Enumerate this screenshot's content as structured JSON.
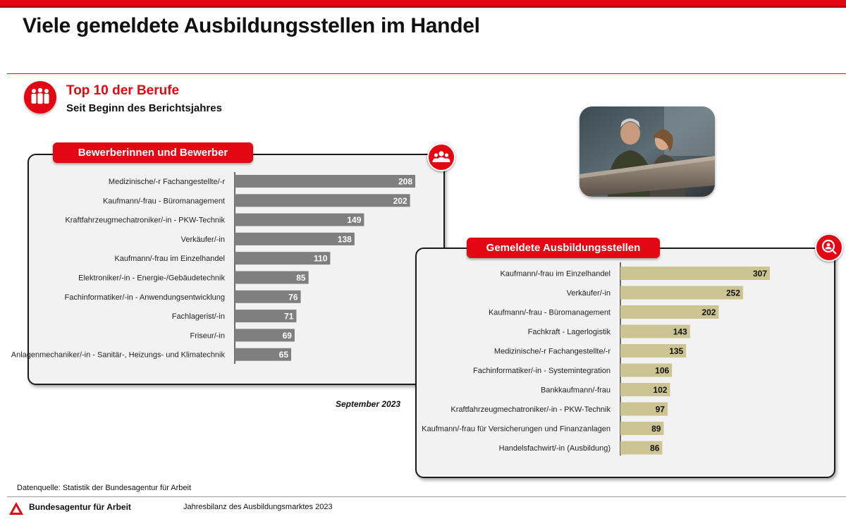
{
  "page": {
    "title": "Viele gemeldete Ausbildungsstellen im Handel",
    "section_title": "Top 10 der Berufe",
    "section_subtitle": "Seit Beginn des Berichtsjahres",
    "date_label": "September 2023",
    "source": "Datenquelle: Statistik der Bundesagentur für Arbeit",
    "org_name": "Bundesagentur für Arbeit",
    "doc_title": "Jahresbilanz des Ausbildungsmarktes 2023"
  },
  "icons": {
    "section": "people-group-icon",
    "left": "people-icon",
    "right": "magnifier-person-icon",
    "logo": "ba-logo-icon"
  },
  "colors": {
    "accent": "#e30613",
    "left_bars": "#7f7f7f",
    "right_bars": "#cdc494"
  },
  "photo": {
    "description": "workers-photo"
  },
  "chart_data": [
    {
      "type": "bar",
      "orientation": "horizontal",
      "title": "Bewerberinnen und Bewerber",
      "categories": [
        "Medizinische/-r Fachangestellte/-r",
        "Kaufmann/-frau - Büromanagement",
        "Kraftfahrzeugmechatroniker/-in - PKW-Technik",
        "Verkäufer/-in",
        "Kaufmann/-frau im Einzelhandel",
        "Elektroniker/-in - Energie-/Gebäudetechnik",
        "Fachinformatiker/-in - Anwendungsentwicklung",
        "Fachlagerist/-in",
        "Friseur/-in",
        "Anlagenmechaniker/-in - Sanitär-, Heizungs- und Klimatechnik"
      ],
      "values": [
        208,
        202,
        149,
        138,
        110,
        85,
        76,
        71,
        69,
        65
      ],
      "value_labels": [
        "208",
        "202",
        "149",
        "138",
        "110",
        "85",
        "76",
        "71",
        "69",
        "65"
      ],
      "xlim": [
        0,
        208
      ]
    },
    {
      "type": "bar",
      "orientation": "horizontal",
      "title": "Gemeldete Ausbildungsstellen",
      "categories": [
        "Kaufmann/-frau im Einzelhandel",
        "Verkäufer/-in",
        "Kaufmann/-frau - Büromanagement",
        "Fachkraft - Lagerlogistik",
        "Medizinische/-r Fachangestellte/-r",
        "Fachinformatiker/-in - Systemintegration",
        "Bankkaufmann/-frau",
        "Kraftfahrzeugmechatroniker/-in - PKW-Technik",
        "Kaufmann/-frau für Versicherungen und Finanzanlagen",
        "Handelsfachwirt/-in (Ausbildung)"
      ],
      "values": [
        307,
        252,
        202,
        143,
        135,
        106,
        102,
        97,
        89,
        86
      ],
      "value_labels": [
        "307",
        "252",
        "202",
        "143",
        "135",
        "106",
        "102",
        "97",
        "89",
        "86"
      ],
      "xlim": [
        0,
        307
      ]
    }
  ]
}
